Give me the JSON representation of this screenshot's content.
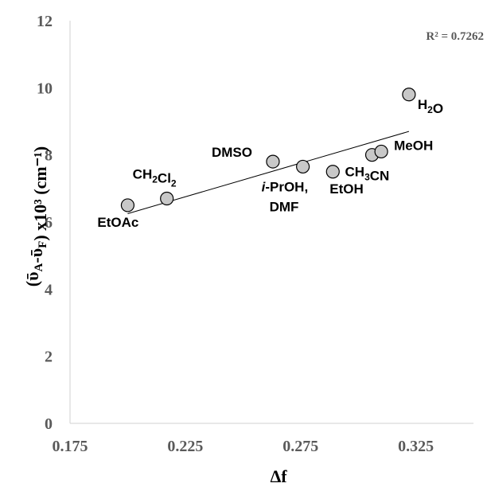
{
  "chart_data": {
    "type": "scatter",
    "xlabel": "Δf",
    "ylabel": "(ῡA-ῡF) x10³ (cm⁻¹)",
    "xlim": [
      0.175,
      0.35
    ],
    "ylim": [
      0,
      12
    ],
    "xticks": [
      "0.175",
      "0.225",
      "0.275",
      "0.325"
    ],
    "yticks": [
      "0",
      "2",
      "4",
      "6",
      "8",
      "10",
      "12"
    ],
    "points": [
      {
        "label": "EtOAc",
        "x": 0.2,
        "y": 6.5
      },
      {
        "label": "CH2Cl2",
        "x": 0.217,
        "y": 6.7
      },
      {
        "label": "DMSO",
        "x": 0.263,
        "y": 7.8
      },
      {
        "label": "i-PrOH, DMF",
        "x": 0.276,
        "y": 7.65
      },
      {
        "label": "EtOH",
        "x": 0.289,
        "y": 7.5
      },
      {
        "label": "CH3CN",
        "x": 0.306,
        "y": 8.0
      },
      {
        "label": "MeOH",
        "x": 0.31,
        "y": 8.1
      },
      {
        "label": "H2O",
        "x": 0.322,
        "y": 9.8
      }
    ],
    "trendline": {
      "x": [
        0.2,
        0.322
      ],
      "y": [
        6.25,
        8.7
      ]
    },
    "r_squared": "R² = 0.7262",
    "grid": false,
    "legend": "none",
    "marker_fill": "#c8c8c8",
    "marker_stroke": "#000000"
  }
}
